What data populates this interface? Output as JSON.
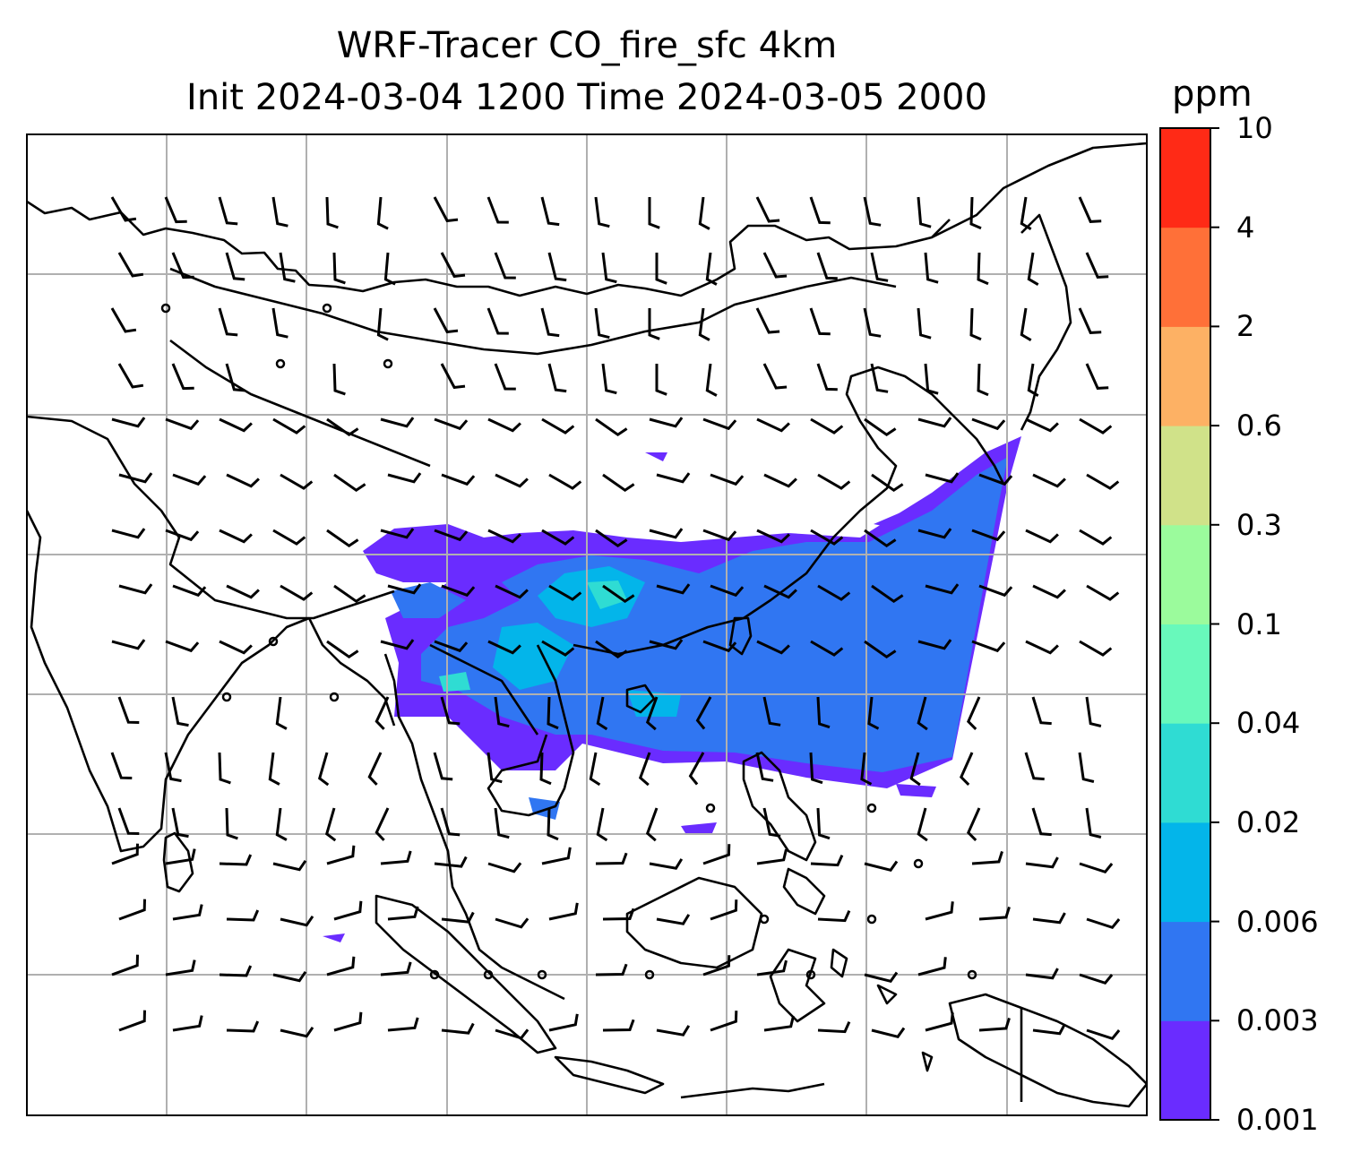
{
  "title": {
    "line1": "WRF-Tracer CO_fire_sfc 4km",
    "line2": "Init 2024-03-04 1200 Time 2024-03-05 2000"
  },
  "colorbar": {
    "unit": "ppm",
    "levels": [
      "0.001",
      "0.003",
      "0.006",
      "0.02",
      "0.04",
      "0.1",
      "0.3",
      "0.6",
      "2",
      "4",
      "10"
    ],
    "colors": [
      "#6a2cff",
      "#3076f2",
      "#03b5ea",
      "#2fdcd3",
      "#68f9bb",
      "#9bfb9c",
      "#d0e289",
      "#fdb164",
      "#ff7038",
      "#ff2a16"
    ]
  },
  "map": {
    "plume_colors": {
      "low": "#6a2cff",
      "mid": "#3076f2",
      "core": "#03b5ea",
      "peak": "#2fdcd3"
    },
    "coastline_color": "#000000",
    "gridline_color": "#b0b0b0"
  }
}
